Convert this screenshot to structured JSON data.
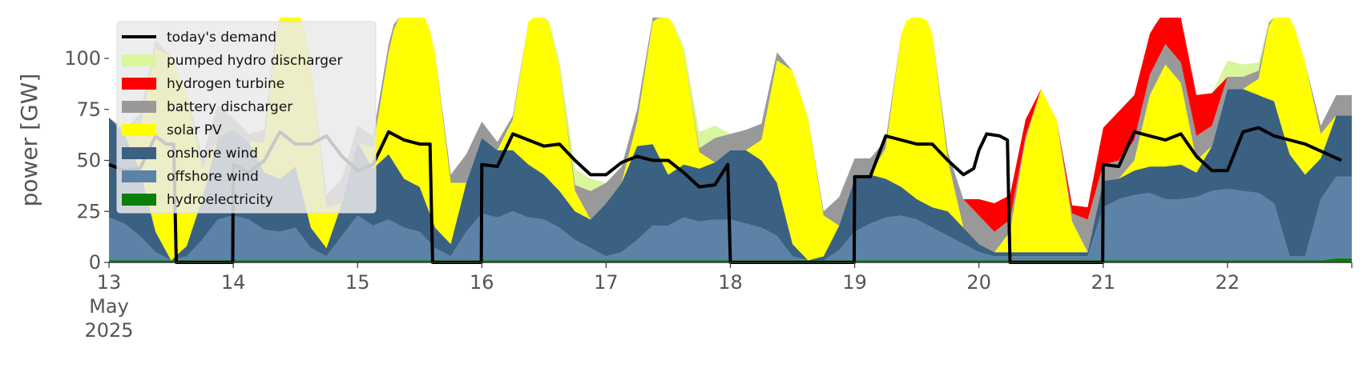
{
  "chart_data": {
    "type": "area",
    "ylabel": "power [GW]",
    "xlabel": "",
    "x_start": "2025-05-13T00:00",
    "x_end": "2025-05-22T23:00",
    "ylim": [
      0,
      120
    ],
    "yticks": [
      0,
      25,
      50,
      75,
      100
    ],
    "xticks": [
      {
        "day": 13,
        "label": "13",
        "sub": [
          "May",
          "2025"
        ]
      },
      {
        "day": 14,
        "label": "14"
      },
      {
        "day": 15,
        "label": "15"
      },
      {
        "day": 16,
        "label": "16"
      },
      {
        "day": 17,
        "label": "17"
      },
      {
        "day": 18,
        "label": "18"
      },
      {
        "day": 19,
        "label": "19"
      },
      {
        "day": 20,
        "label": "20"
      },
      {
        "day": 21,
        "label": "21"
      },
      {
        "day": 22,
        "label": "22"
      }
    ],
    "legend_position": "top-left",
    "legend": [
      {
        "label": "today's demand",
        "color": "#000000",
        "kind": "line"
      },
      {
        "label": "pumped hydro discharger",
        "color": "#d9f59e",
        "kind": "patch"
      },
      {
        "label": "hydrogen turbine",
        "color": "#ff0000",
        "kind": "patch"
      },
      {
        "label": "battery discharger",
        "color": "#999999",
        "kind": "patch"
      },
      {
        "label": "solar PV",
        "color": "#ffff00",
        "kind": "patch"
      },
      {
        "label": "onshore wind",
        "color": "#3b6182",
        "kind": "patch"
      },
      {
        "label": "offshore wind",
        "color": "#5d82a8",
        "kind": "patch"
      },
      {
        "label": "hydroelectricity",
        "color": "#0a7f0a",
        "kind": "patch"
      }
    ],
    "stack_order": [
      "hydroelectricity",
      "offshore wind",
      "onshore wind",
      "solar PV",
      "battery discharger",
      "hydrogen turbine",
      "pumped hydro discharger"
    ],
    "sample_hours": [
      0,
      3,
      6,
      9,
      12,
      15,
      18,
      21
    ],
    "series": [
      {
        "name": "hydroelectricity",
        "daily": [
          [
            1,
            1,
            1,
            1,
            1,
            1,
            1,
            1
          ],
          [
            1,
            1,
            1,
            1,
            1,
            1,
            1,
            1
          ],
          [
            1,
            1,
            1,
            1,
            1,
            1,
            1,
            1
          ],
          [
            1,
            1,
            1,
            1,
            1,
            1,
            1,
            1
          ],
          [
            1,
            1,
            1,
            1,
            1,
            1,
            1,
            1
          ],
          [
            1,
            1,
            1,
            1,
            1,
            1,
            1,
            1
          ],
          [
            1,
            1,
            1,
            1,
            1,
            1,
            1,
            1
          ],
          [
            1,
            1,
            1,
            1,
            1,
            1,
            1,
            1
          ],
          [
            1,
            1,
            1,
            1,
            1,
            1,
            1,
            1
          ],
          [
            1,
            1,
            1,
            1,
            1,
            1,
            1,
            2
          ]
        ]
      },
      {
        "name": "offshore wind",
        "daily": [
          [
            21,
            18,
            12,
            4,
            0,
            2,
            10,
            20
          ],
          [
            22,
            20,
            15,
            14,
            16,
            6,
            2,
            12
          ],
          [
            22,
            17,
            20,
            16,
            14,
            6,
            2,
            14
          ],
          [
            23,
            21,
            24,
            21,
            20,
            16,
            10,
            6
          ],
          [
            2,
            4,
            10,
            17,
            17,
            21,
            19,
            20
          ],
          [
            20,
            18,
            16,
            12,
            2,
            0,
            0,
            5
          ],
          [
            14,
            18,
            21,
            22,
            20,
            16,
            12,
            8
          ],
          [
            4,
            2,
            2,
            2,
            2,
            2,
            2,
            2
          ],
          [
            26,
            30,
            32,
            33,
            30,
            30,
            31,
            34
          ],
          [
            35,
            34,
            33,
            28,
            2,
            2,
            30,
            40
          ]
        ]
      },
      {
        "name": "onshore wind",
        "daily": [
          [
            49,
            44,
            32,
            10,
            0,
            5,
            20,
            40
          ],
          [
            42,
            38,
            28,
            26,
            30,
            10,
            4,
            16
          ],
          [
            36,
            28,
            32,
            24,
            22,
            10,
            6,
            24
          ],
          [
            37,
            33,
            30,
            26,
            22,
            18,
            14,
            14
          ],
          [
            26,
            34,
            46,
            40,
            25,
            26,
            26,
            28
          ],
          [
            34,
            36,
            33,
            26,
            6,
            0,
            2,
            12
          ],
          [
            26,
            24,
            19,
            14,
            10,
            10,
            12,
            8
          ],
          [
            4,
            2,
            2,
            2,
            2,
            2,
            2,
            2
          ],
          [
            13,
            10,
            12,
            13,
            16,
            17,
            12,
            22
          ],
          [
            49,
            50,
            48,
            50,
            50,
            40,
            20,
            30
          ]
        ]
      },
      {
        "name": "solar PV",
        "daily": [
          [
            0,
            0,
            20,
            90,
            100,
            75,
            15,
            0
          ],
          [
            0,
            0,
            15,
            85,
            100,
            80,
            20,
            0
          ],
          [
            0,
            10,
            50,
            95,
            100,
            85,
            30,
            0
          ],
          [
            0,
            0,
            15,
            70,
            85,
            60,
            10,
            0
          ],
          [
            0,
            0,
            12,
            60,
            80,
            55,
            8,
            0
          ],
          [
            0,
            0,
            10,
            60,
            85,
            70,
            20,
            0
          ],
          [
            0,
            0,
            15,
            75,
            100,
            85,
            25,
            0
          ],
          [
            0,
            0,
            10,
            55,
            80,
            65,
            15,
            0
          ],
          [
            0,
            0,
            5,
            35,
            50,
            40,
            6,
            0
          ],
          [
            0,
            0,
            8,
            50,
            70,
            55,
            12,
            0
          ]
        ]
      },
      {
        "name": "battery discharger",
        "daily": [
          [
            0,
            2,
            8,
            4,
            0,
            0,
            6,
            16
          ],
          [
            6,
            4,
            6,
            4,
            0,
            0,
            6,
            12
          ],
          [
            8,
            6,
            4,
            0,
            0,
            0,
            4,
            14
          ],
          [
            8,
            4,
            2,
            0,
            0,
            0,
            3,
            14
          ],
          [
            10,
            8,
            6,
            2,
            0,
            0,
            2,
            12
          ],
          [
            8,
            10,
            8,
            4,
            0,
            0,
            2,
            14
          ],
          [
            10,
            8,
            4,
            0,
            0,
            0,
            4,
            14
          ],
          [
            14,
            10,
            6,
            2,
            0,
            0,
            4,
            16
          ],
          [
            8,
            9,
            10,
            10,
            10,
            10,
            12,
            10
          ],
          [
            6,
            6,
            4,
            0,
            0,
            0,
            4,
            10
          ]
        ]
      },
      {
        "name": "hydrogen turbine",
        "daily": [
          [
            0,
            0,
            0,
            0,
            0,
            0,
            0,
            0
          ],
          [
            0,
            0,
            0,
            0,
            0,
            0,
            0,
            0
          ],
          [
            0,
            0,
            0,
            0,
            0,
            0,
            0,
            0
          ],
          [
            0,
            0,
            0,
            0,
            0,
            0,
            0,
            0
          ],
          [
            0,
            0,
            0,
            0,
            0,
            0,
            0,
            0
          ],
          [
            0,
            0,
            0,
            0,
            0,
            0,
            0,
            0
          ],
          [
            0,
            0,
            0,
            0,
            0,
            0,
            0,
            0
          ],
          [
            8,
            14,
            12,
            8,
            0,
            0,
            4,
            6
          ],
          [
            18,
            24,
            22,
            20,
            18,
            22,
            20,
            16
          ],
          [
            0,
            0,
            0,
            0,
            0,
            0,
            0,
            0
          ]
        ]
      },
      {
        "name": "pumped hydro discharger",
        "daily": [
          [
            0,
            0,
            0,
            0,
            0,
            0,
            0,
            0
          ],
          [
            0,
            0,
            0,
            0,
            0,
            0,
            0,
            0
          ],
          [
            0,
            0,
            0,
            0,
            0,
            0,
            0,
            0
          ],
          [
            0,
            0,
            0,
            0,
            0,
            4,
            8,
            6
          ],
          [
            0,
            0,
            0,
            0,
            0,
            3,
            8,
            6
          ],
          [
            0,
            0,
            0,
            0,
            0,
            0,
            0,
            0
          ],
          [
            0,
            0,
            0,
            0,
            0,
            0,
            0,
            0
          ],
          [
            0,
            0,
            0,
            0,
            0,
            0,
            0,
            0
          ],
          [
            0,
            0,
            0,
            0,
            0,
            0,
            0,
            0
          ],
          [
            8,
            6,
            4,
            0,
            0,
            0,
            0,
            0
          ]
        ]
      },
      {
        "name": "today's demand",
        "type": "line",
        "points": [
          [
            0,
            48
          ],
          [
            3,
            45
          ],
          [
            6,
            46
          ],
          [
            9,
            62
          ],
          [
            11,
            58
          ],
          [
            12.5,
            58
          ],
          [
            13,
            0
          ],
          [
            23.9,
            0
          ],
          [
            24,
            48
          ],
          [
            27,
            44
          ],
          [
            30,
            50
          ],
          [
            33,
            64
          ],
          [
            36,
            58
          ],
          [
            39,
            58
          ],
          [
            42,
            62
          ],
          [
            45,
            52
          ],
          [
            48,
            45
          ],
          [
            51,
            48
          ],
          [
            54,
            64
          ],
          [
            57,
            60
          ],
          [
            60,
            58
          ],
          [
            62,
            58
          ],
          [
            62.5,
            0
          ],
          [
            71.9,
            0
          ],
          [
            72,
            48
          ],
          [
            75,
            47
          ],
          [
            78,
            63
          ],
          [
            81,
            60
          ],
          [
            84,
            57
          ],
          [
            87,
            58
          ],
          [
            90,
            50
          ],
          [
            93,
            43
          ],
          [
            96,
            43
          ],
          [
            99,
            49
          ],
          [
            102,
            52
          ],
          [
            105,
            50
          ],
          [
            108,
            50
          ],
          [
            111,
            44
          ],
          [
            114,
            37
          ],
          [
            117,
            38
          ],
          [
            119.5,
            48
          ],
          [
            120,
            0
          ],
          [
            143.9,
            0
          ],
          [
            144,
            42
          ],
          [
            147,
            42
          ],
          [
            150,
            62
          ],
          [
            153,
            60
          ],
          [
            156,
            58
          ],
          [
            159,
            58
          ],
          [
            162,
            50
          ],
          [
            165,
            43
          ],
          [
            167,
            46
          ],
          [
            168,
            55
          ],
          [
            169.5,
            63
          ],
          [
            172,
            62
          ],
          [
            173.5,
            60
          ],
          [
            174,
            0
          ],
          [
            191.9,
            0
          ],
          [
            192,
            48
          ],
          [
            195,
            47
          ],
          [
            198,
            64
          ],
          [
            201,
            62
          ],
          [
            204,
            60
          ],
          [
            207,
            63
          ],
          [
            210,
            52
          ],
          [
            213,
            45
          ],
          [
            216,
            45
          ],
          [
            219,
            64
          ],
          [
            222,
            66
          ],
          [
            225,
            62
          ],
          [
            228,
            60
          ],
          [
            231,
            58
          ],
          [
            238,
            50
          ]
        ]
      }
    ]
  }
}
